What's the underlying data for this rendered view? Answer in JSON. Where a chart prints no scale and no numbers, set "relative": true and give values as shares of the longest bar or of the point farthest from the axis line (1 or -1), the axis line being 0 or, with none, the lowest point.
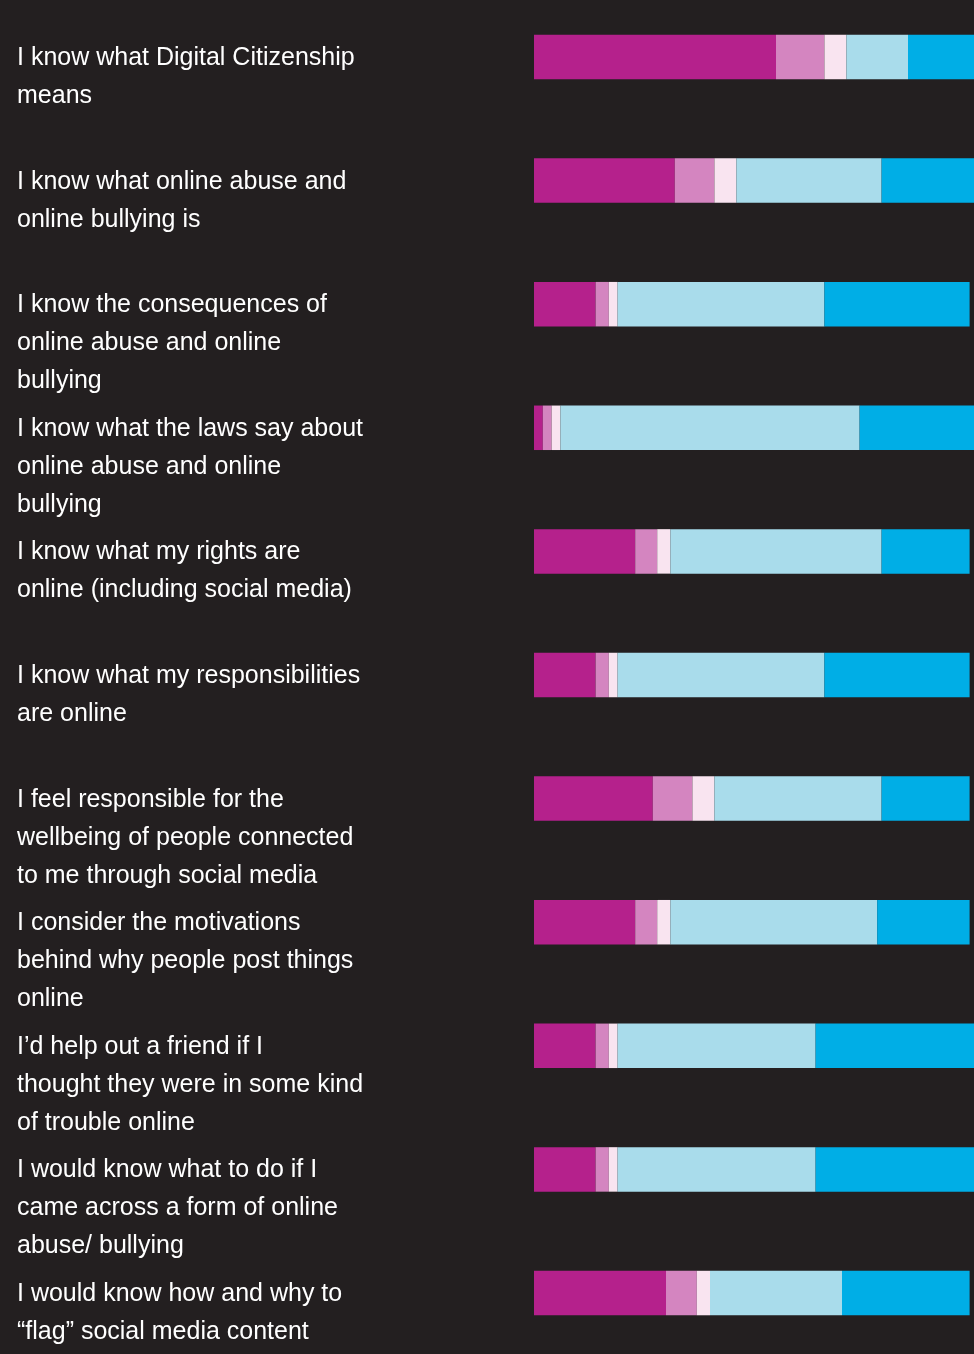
{
  "chart_data": {
    "type": "bar",
    "orientation": "horizontal",
    "stacked": true,
    "relative": true,
    "categories": [
      "I know what Digital Citizenship means",
      "I know what online abuse and online bullying is",
      "I know the consequences of online abuse and online bullying",
      "I know what the laws say about online abuse and online bullying",
      "I know what my rights are online (including social media)",
      "I know what my responsibilities are online",
      "I feel responsible for the wellbeing of people connected to me through social media",
      "I consider the motivations behind why people post things online",
      "I’d help out a friend if I thought they were in some kind of trouble online",
      "I would know what to do if I came across a form of online abuse/ bullying",
      "I would know how and why to “flag” social media content"
    ],
    "series": [
      {
        "color": "#b5218c",
        "values": [
          0.55,
          0.32,
          0.14,
          0.02,
          0.23,
          0.14,
          0.27,
          0.23,
          0.14,
          0.14,
          0.3
        ]
      },
      {
        "color": "#d485c0",
        "values": [
          0.11,
          0.09,
          0.03,
          0.02,
          0.05,
          0.03,
          0.09,
          0.05,
          0.03,
          0.03,
          0.07
        ]
      },
      {
        "color": "#f9e4f0",
        "values": [
          0.05,
          0.05,
          0.02,
          0.02,
          0.03,
          0.02,
          0.05,
          0.03,
          0.02,
          0.02,
          0.03
        ]
      },
      {
        "color": "#a9dceb",
        "values": [
          0.14,
          0.33,
          0.47,
          0.68,
          0.48,
          0.47,
          0.38,
          0.47,
          0.45,
          0.45,
          0.3
        ]
      },
      {
        "color": "#00aee6",
        "values": [
          0.15,
          0.21,
          0.33,
          0.26,
          0.2,
          0.33,
          0.2,
          0.21,
          0.36,
          0.36,
          0.29
        ]
      }
    ]
  }
}
